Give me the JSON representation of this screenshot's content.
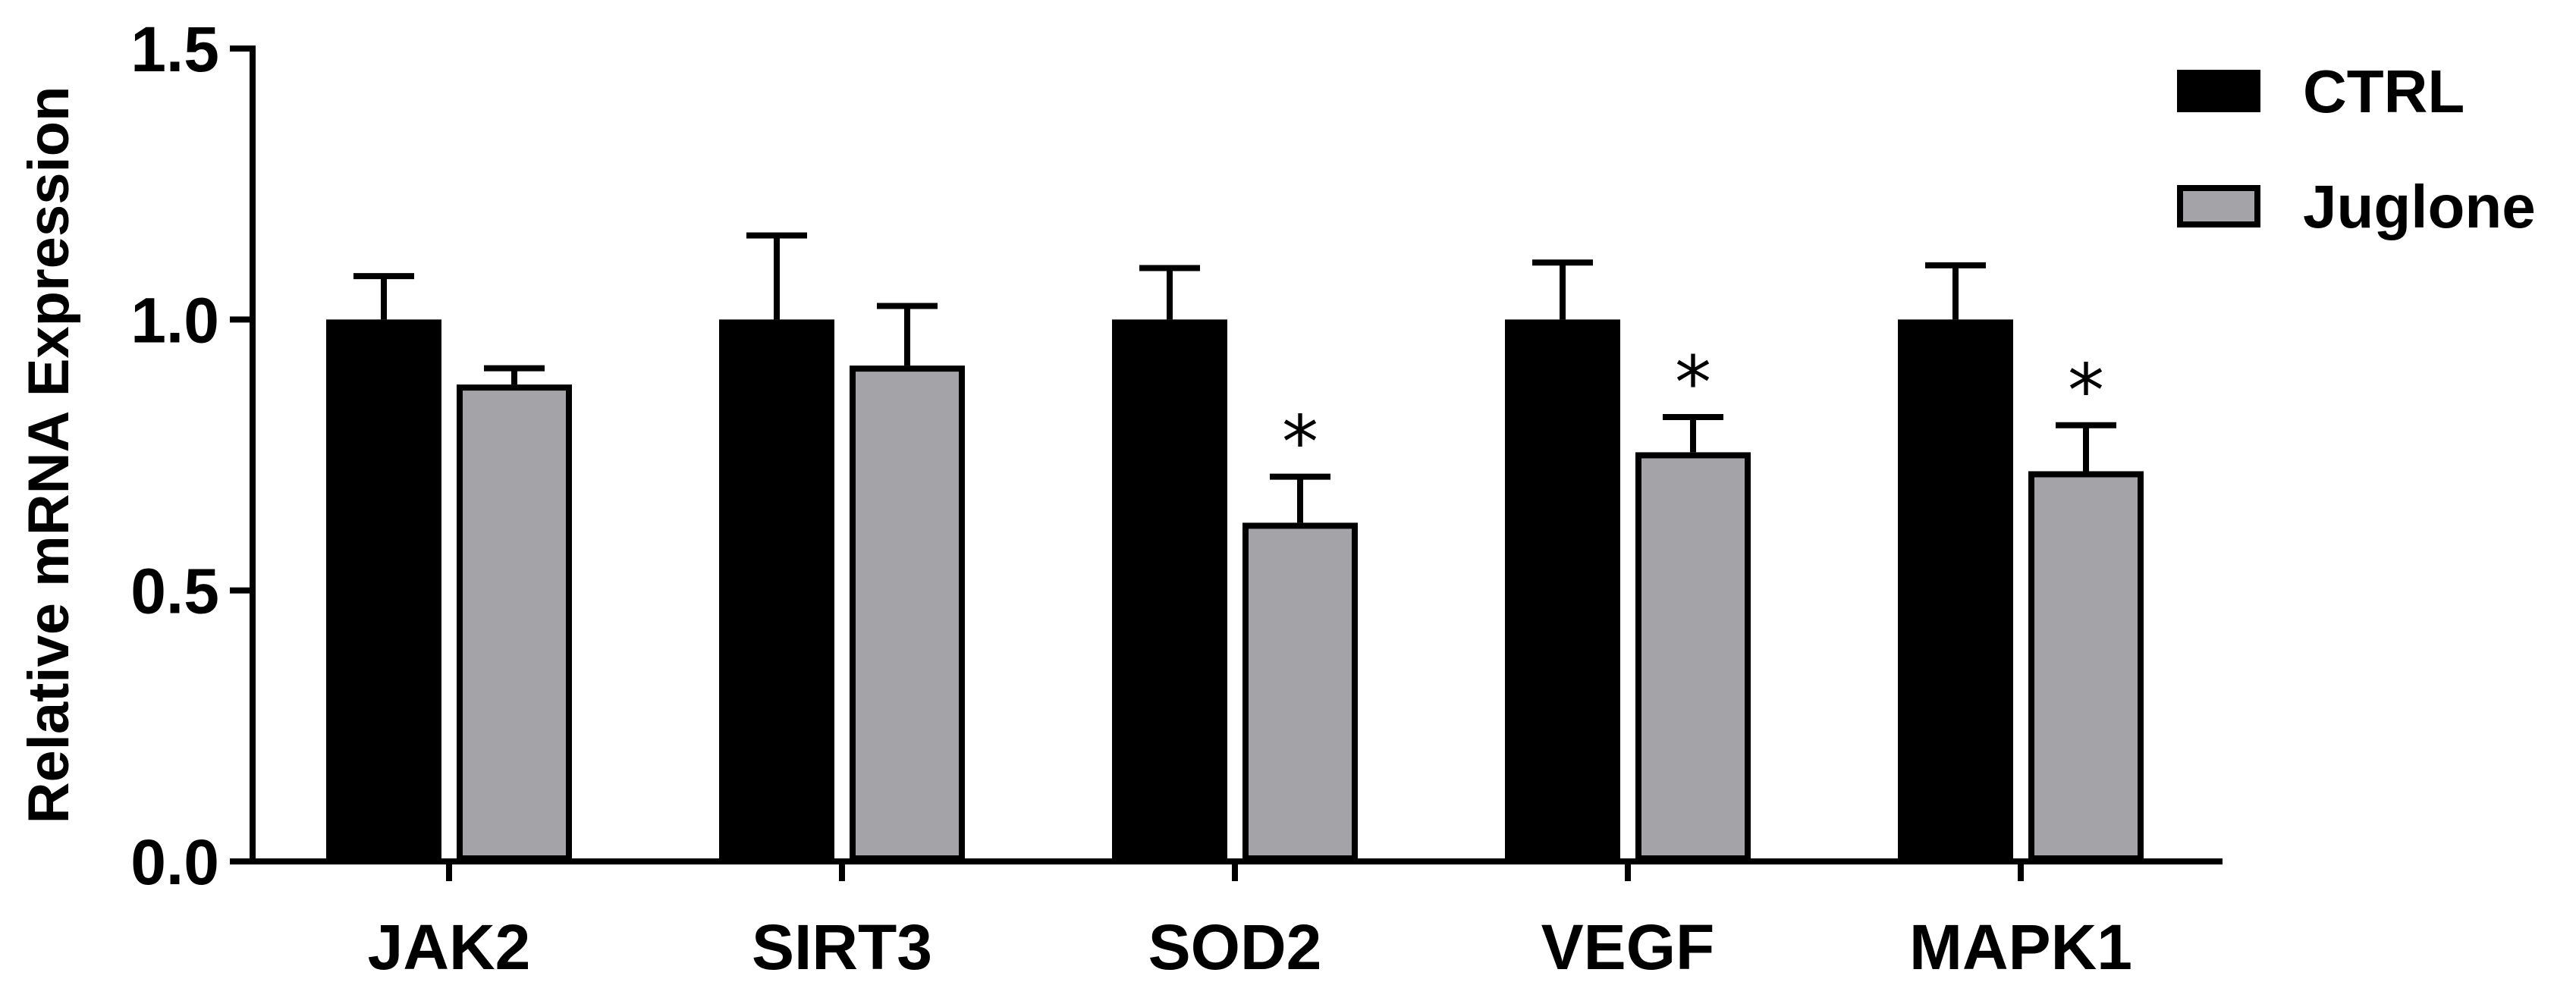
{
  "chart_data": {
    "type": "bar",
    "title": "",
    "xlabel": "",
    "ylabel": "Relative mRNA Expression",
    "ylim": [
      0,
      1.5
    ],
    "yticks": [
      "0.0",
      "0.5",
      "1.0",
      "1.5"
    ],
    "categories": [
      "JAK2",
      "SIRT3",
      "SOD2",
      "VEGF",
      "MAPK1"
    ],
    "series": [
      {
        "name": "CTRL",
        "color": "#000000",
        "values": [
          1.0,
          1.0,
          1.0,
          1.0,
          1.0
        ],
        "errors": [
          0.08,
          0.155,
          0.095,
          0.105,
          0.1
        ],
        "significance": [
          "",
          "",
          "",
          "",
          ""
        ]
      },
      {
        "name": "Juglone",
        "color": "#a3a3a8",
        "values": [
          0.88,
          0.915,
          0.625,
          0.755,
          0.72
        ],
        "errors": [
          0.03,
          0.11,
          0.085,
          0.065,
          0.085
        ],
        "significance": [
          "",
          "",
          "*",
          "*",
          "*"
        ]
      }
    ],
    "legend_position": "top-right"
  }
}
